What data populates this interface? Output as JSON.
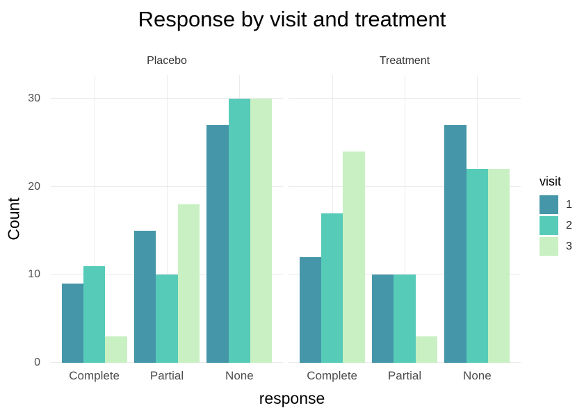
{
  "title": "Response by visit and treatment",
  "axes": {
    "x_title": "response",
    "y_title": "Count",
    "y_ticks": [
      0,
      10,
      20,
      30
    ],
    "y_tick_labels": [
      "0",
      "10",
      "20",
      "30"
    ],
    "y_max_units": 32.7
  },
  "legend": {
    "title": "visit",
    "items": [
      {
        "label": "1",
        "color": "#4596A8"
      },
      {
        "label": "2",
        "color": "#56CBB8"
      },
      {
        "label": "3",
        "color": "#C9F0C2"
      }
    ]
  },
  "colors": {
    "background": "#ffffff",
    "gridline": "#ebebeb",
    "tick_text": "#4d4d4d",
    "title_text": "#000000",
    "strip_text": "#333333"
  },
  "chart_data": {
    "type": "bar",
    "title": "Response by visit and treatment",
    "xlabel": "response",
    "ylabel": "Count",
    "ylim": [
      0,
      32.7
    ],
    "y_ticks": [
      0,
      10,
      20,
      30
    ],
    "grid": "major gridlines only, light gray on white background",
    "legend_position": "right",
    "legend_title": "visit",
    "bar_layout": "dodged, 3 bars per category, group width 0.9",
    "categories": [
      "Complete",
      "Partial",
      "None"
    ],
    "facets": [
      {
        "label": "Placebo",
        "series": [
          {
            "name": "1",
            "color": "#4596A8",
            "values": [
              9,
              15,
              27
            ]
          },
          {
            "name": "2",
            "color": "#56CBB8",
            "values": [
              11,
              10,
              30
            ]
          },
          {
            "name": "3",
            "color": "#C9F0C2",
            "values": [
              3,
              18,
              30
            ]
          }
        ]
      },
      {
        "label": "Treatment",
        "series": [
          {
            "name": "1",
            "color": "#4596A8",
            "values": [
              12,
              10,
              27
            ]
          },
          {
            "name": "2",
            "color": "#56CBB8",
            "values": [
              17,
              10,
              22
            ]
          },
          {
            "name": "3",
            "color": "#C9F0C2",
            "values": [
              24,
              3,
              22
            ]
          }
        ]
      }
    ]
  }
}
